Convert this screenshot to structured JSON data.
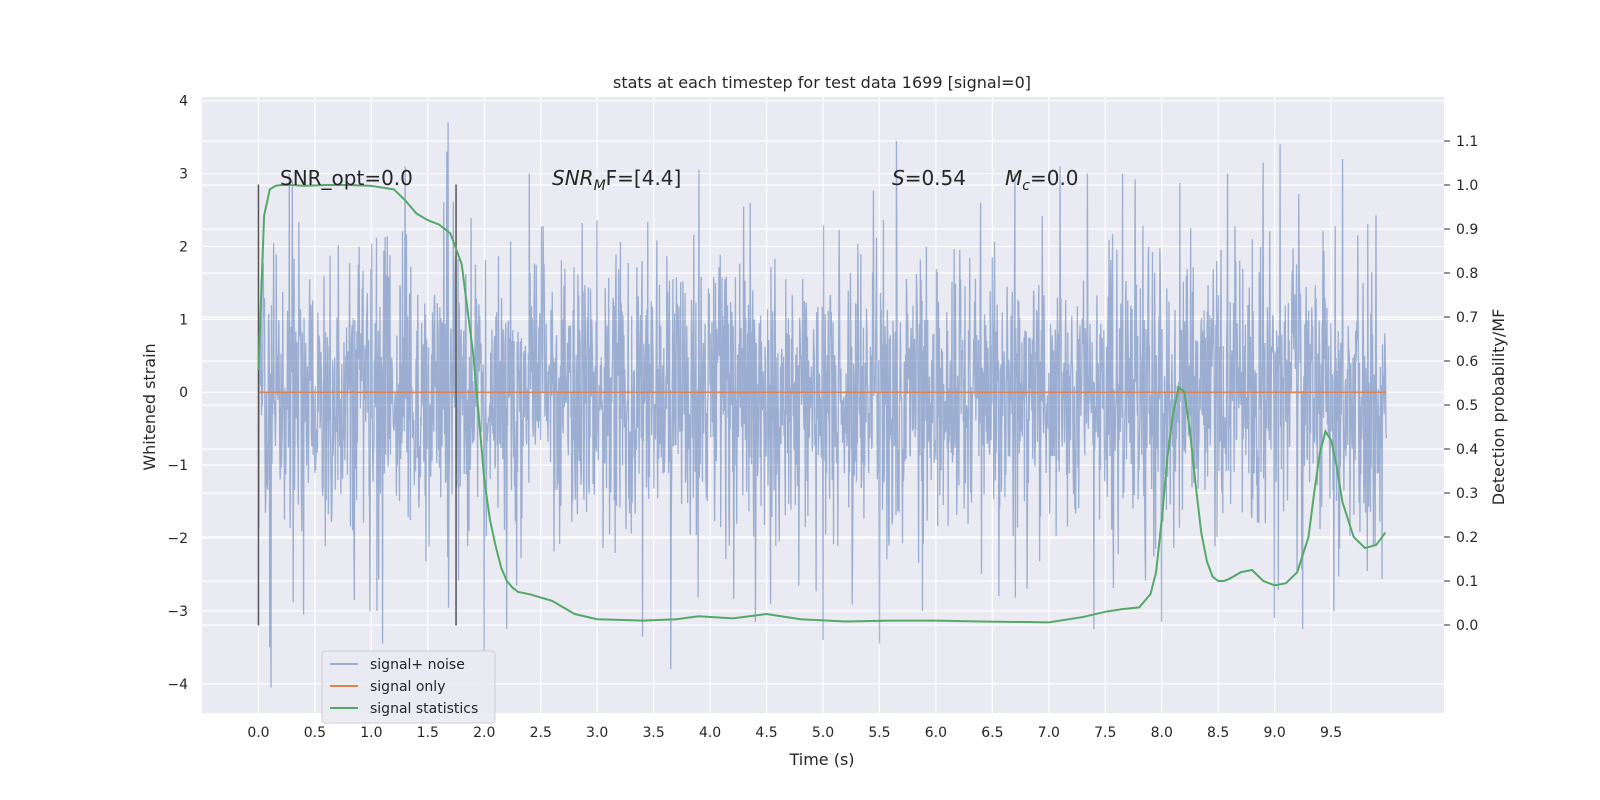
{
  "chart_data": {
    "type": "line",
    "title": "stats at each timestep for test data 1699 [signal=0]",
    "xlabel": "Time (s)",
    "ylabel_left": "Whitened strain",
    "ylabel_right": "Detection probability/MF",
    "xlim": [
      -0.5,
      10.5
    ],
    "ylim_left": [
      -4.4,
      4.05
    ],
    "ylim_right": [
      -0.2,
      1.2
    ],
    "x_ticks": [
      "0.0",
      "0.5",
      "1.0",
      "1.5",
      "2.0",
      "2.5",
      "3.0",
      "3.5",
      "4.0",
      "4.5",
      "5.0",
      "5.5",
      "6.0",
      "6.5",
      "7.0",
      "7.5",
      "8.0",
      "8.5",
      "9.0",
      "9.5"
    ],
    "y_left_ticks": [
      4,
      3,
      2,
      1,
      0,
      -1,
      -2,
      -3,
      -4
    ],
    "y_left_tick_labels": [
      "4",
      "3",
      "2",
      "1",
      "0",
      "−1",
      "−2",
      "−3",
      "−4"
    ],
    "y_right_ticks": [
      1.1,
      1.0,
      0.9,
      0.8,
      0.7,
      0.6,
      0.5,
      0.4,
      0.3,
      0.2,
      0.1,
      0.0
    ],
    "y_right_tick_labels": [
      "1.1",
      "1.0",
      "0.9",
      "0.8",
      "0.7",
      "0.6",
      "0.5",
      "0.4",
      "0.3",
      "0.2",
      "0.1",
      "0.0"
    ],
    "grid": true,
    "legend_position": "lower-left",
    "vertical_markers": [
      0.0,
      1.75
    ],
    "vertical_marker_range": [
      -3.2,
      2.85
    ],
    "annotations": {
      "snr_opt": "SNR_opt=0.0",
      "snr_mf_base": "SNR",
      "snr_mf_sub": "M",
      "snr_mf_rest": "F=[4.4]",
      "s_label": "S",
      "s_value": "=0.54",
      "mc_label": "M",
      "mc_sub": "c",
      "mc_value": "=0.0"
    },
    "series": [
      {
        "name": "signal+ noise",
        "color": "#4c72b0",
        "opacity": 0.5,
        "x_range": [
          0.0,
          9.99
        ],
        "description_type": "noise",
        "envelope_typical": 1.0,
        "peaks": [
          {
            "x": 0.1,
            "y": -3.5
          },
          {
            "x": 0.11,
            "y": -4.05
          },
          {
            "x": 0.3,
            "y": 2.9
          },
          {
            "x": 0.4,
            "y": -3.05
          },
          {
            "x": 0.85,
            "y": -2.85
          },
          {
            "x": 1.1,
            "y": -3.45
          },
          {
            "x": 1.3,
            "y": 3.1
          },
          {
            "x": 1.67,
            "y": 3.3
          },
          {
            "x": 1.68,
            "y": 3.7
          },
          {
            "x": 2.0,
            "y": -3.55
          },
          {
            "x": 2.2,
            "y": -3.25
          },
          {
            "x": 2.4,
            "y": 3.0
          },
          {
            "x": 3.4,
            "y": -3.35
          },
          {
            "x": 3.65,
            "y": -3.8
          },
          {
            "x": 4.4,
            "y": -3.15
          },
          {
            "x": 5.0,
            "y": -3.4
          },
          {
            "x": 5.5,
            "y": -3.45
          },
          {
            "x": 5.65,
            "y": 3.45
          },
          {
            "x": 6.7,
            "y": 3.0
          },
          {
            "x": 7.1,
            "y": 3.1
          },
          {
            "x": 8.0,
            "y": -3.15
          },
          {
            "x": 8.9,
            "y": 3.15
          },
          {
            "x": 9.05,
            "y": 3.4
          },
          {
            "x": 9.0,
            "y": -3.1
          },
          {
            "x": 9.25,
            "y": -3.25
          },
          {
            "x": 9.6,
            "y": 3.2
          },
          {
            "x": 7.4,
            "y": -3.25
          },
          {
            "x": 3.9,
            "y": 3.05
          }
        ]
      },
      {
        "name": "signal only",
        "color": "#dd8452",
        "x": [
          0.0,
          9.99
        ],
        "values": [
          0.0,
          0.0
        ]
      },
      {
        "name": "signal statistics",
        "color": "#55a868",
        "axis": "right",
        "x": [
          0.0,
          0.05,
          0.1,
          0.15,
          0.2,
          0.3,
          0.4,
          0.6,
          0.8,
          1.0,
          1.2,
          1.3,
          1.4,
          1.5,
          1.6,
          1.7,
          1.8,
          1.9,
          1.95,
          2.0,
          2.05,
          2.1,
          2.15,
          2.2,
          2.25,
          2.3,
          2.4,
          2.6,
          2.8,
          3.0,
          3.4,
          3.7,
          3.9,
          4.2,
          4.5,
          4.8,
          5.2,
          5.6,
          6.0,
          6.4,
          7.0,
          7.3,
          7.5,
          7.65,
          7.8,
          7.9,
          7.95,
          8.0,
          8.05,
          8.1,
          8.15,
          8.2,
          8.25,
          8.3,
          8.35,
          8.4,
          8.45,
          8.5,
          8.55,
          8.6,
          8.7,
          8.8,
          8.9,
          9.0,
          9.1,
          9.2,
          9.3,
          9.35,
          9.4,
          9.45,
          9.5,
          9.55,
          9.6,
          9.7,
          9.8,
          9.9,
          9.98
        ],
        "values": [
          0.58,
          0.93,
          0.99,
          0.998,
          1.0,
          1.0,
          0.998,
          1.0,
          1.0,
          0.998,
          0.99,
          0.965,
          0.935,
          0.92,
          0.91,
          0.89,
          0.82,
          0.62,
          0.48,
          0.33,
          0.24,
          0.18,
          0.13,
          0.1,
          0.085,
          0.075,
          0.07,
          0.055,
          0.025,
          0.013,
          0.01,
          0.013,
          0.02,
          0.015,
          0.025,
          0.013,
          0.008,
          0.01,
          0.01,
          0.008,
          0.006,
          0.018,
          0.03,
          0.036,
          0.04,
          0.07,
          0.12,
          0.24,
          0.38,
          0.48,
          0.54,
          0.53,
          0.44,
          0.32,
          0.21,
          0.145,
          0.11,
          0.1,
          0.1,
          0.105,
          0.12,
          0.125,
          0.1,
          0.09,
          0.095,
          0.12,
          0.2,
          0.3,
          0.39,
          0.44,
          0.42,
          0.36,
          0.28,
          0.2,
          0.175,
          0.182,
          0.21
        ]
      }
    ]
  }
}
